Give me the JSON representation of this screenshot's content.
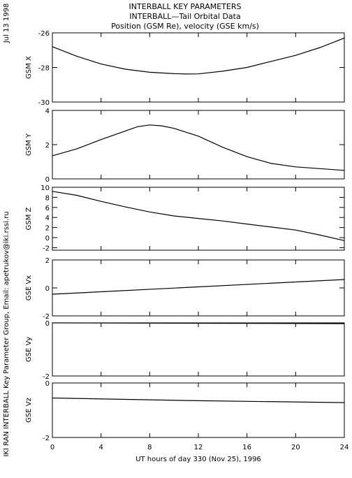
{
  "header": {
    "title_lines": [
      "INTERBALL KEY PARAMETERS",
      "INTERBALL—Tail Orbital Data",
      "Position (GSM Re), velocity (GSE km/s)"
    ],
    "date_label": "Jul 13 1998",
    "credit": "IKI RAN INTERBALL Key Parameter Group, Email: apetrukov@iki.rssi.ru"
  },
  "chart_data": {
    "type": "line",
    "xlabel": "UT hours of day 330 (Nov 25), 1996",
    "xlim": [
      0,
      24
    ],
    "xticks": [
      0,
      4,
      8,
      12,
      16,
      20,
      24
    ],
    "panels": [
      {
        "ylabel": "GSM X",
        "ylim": [
          -30,
          -26
        ],
        "yticks": [
          -30,
          -28,
          -26
        ],
        "x": [
          0,
          2,
          4,
          6,
          8,
          10,
          11,
          12,
          14,
          16,
          18,
          20,
          22,
          24
        ],
        "y": [
          -26.8,
          -27.35,
          -27.8,
          -28.1,
          -28.28,
          -28.36,
          -28.38,
          -28.37,
          -28.22,
          -28.0,
          -27.65,
          -27.3,
          -26.85,
          -26.3
        ]
      },
      {
        "ylabel": "GSM Y",
        "ylim": [
          0,
          4
        ],
        "yticks": [
          0,
          2,
          4
        ],
        "x": [
          0,
          2,
          4,
          6,
          7,
          8,
          9,
          10,
          12,
          14,
          16,
          18,
          20,
          22,
          24
        ],
        "y": [
          1.35,
          1.75,
          2.3,
          2.8,
          3.05,
          3.15,
          3.1,
          2.95,
          2.5,
          1.85,
          1.3,
          0.9,
          0.7,
          0.6,
          0.5
        ]
      },
      {
        "ylabel": "GSM Z",
        "ylim": [
          -2.5,
          10
        ],
        "yticks": [
          -2,
          0,
          2,
          4,
          6,
          8,
          10
        ],
        "x": [
          0,
          2,
          4,
          6,
          8,
          10,
          12,
          14,
          16,
          18,
          20,
          22,
          24
        ],
        "y": [
          9.2,
          8.4,
          7.2,
          6.1,
          5.1,
          4.3,
          3.8,
          3.3,
          2.7,
          2.1,
          1.5,
          0.5,
          -0.6
        ]
      },
      {
        "ylabel": "GSE Vx",
        "ylim": [
          -2,
          2
        ],
        "yticks": [
          -2,
          0,
          2
        ],
        "x": [
          0,
          24
        ],
        "y": [
          -0.45,
          0.6
        ]
      },
      {
        "ylabel": "GSE Vy",
        "ylim": [
          -2,
          0
        ],
        "yticks": [
          -2,
          0
        ],
        "x": [
          0,
          24
        ],
        "y": [
          0.0,
          -0.03
        ]
      },
      {
        "ylabel": "GSE Vz",
        "ylim": [
          -2,
          0
        ],
        "yticks": [
          -2,
          0
        ],
        "x": [
          0,
          12,
          24
        ],
        "y": [
          -0.55,
          -0.65,
          -0.72
        ]
      }
    ]
  }
}
